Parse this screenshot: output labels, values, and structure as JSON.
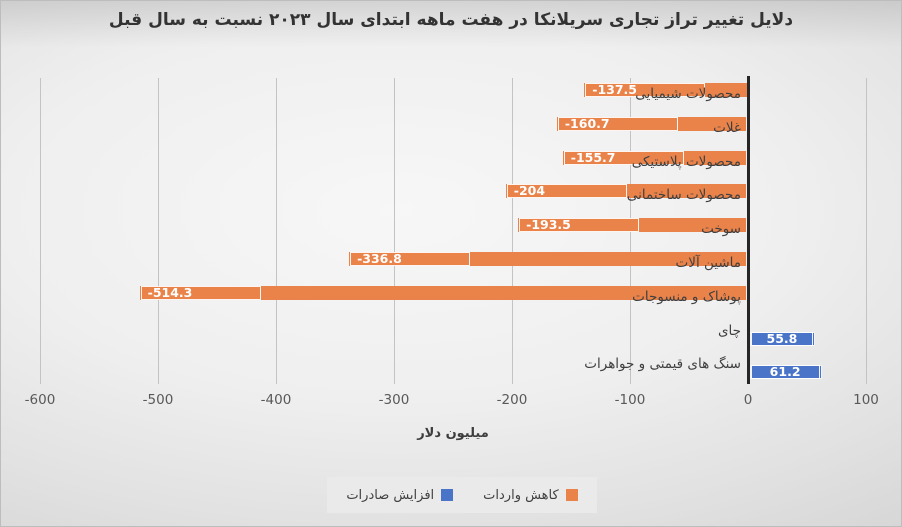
{
  "title": "دلایل تغییر تراز تجاری سریلانکا در هفت ماهه ابتدای سال ۲۰۲۳ نسبت به سال قبل",
  "chart_data": {
    "type": "bar",
    "orientation": "horizontal",
    "title": "دلایل تغییر تراز تجاری سریلانکا در هفت ماهه ابتدای سال ۲۰۲۳ نسبت به سال قبل",
    "xlabel": "میلیون دلار",
    "categories": [
      "محصولات شیمیایی",
      "غلات",
      "محصولات پلاستیکی",
      "محصولات ساختمانی",
      "سوخت",
      "ماشین آلات",
      "پوشاک و منسوجات",
      "چای",
      "سنگ های قیمتی و جواهرات"
    ],
    "series": [
      {
        "name": "کاهش واردات",
        "color": "#EA834A",
        "values": [
          -137.5,
          -160.7,
          -155.7,
          -204,
          -193.5,
          -336.8,
          -514.3,
          null,
          null
        ]
      },
      {
        "name": "افزایش صادرات",
        "color": "#4A74C8",
        "values": [
          null,
          null,
          null,
          null,
          null,
          null,
          null,
          55.8,
          61.2
        ]
      }
    ],
    "value_labels": [
      "-137.5",
      "-160.7",
      "-155.7",
      "-204",
      "-193.5",
      "-336.8",
      "-514.3",
      "55.8",
      "61.2"
    ],
    "xticks": [
      -600,
      -500,
      -400,
      -300,
      -200,
      -100,
      0,
      100
    ],
    "xlim": [
      -600,
      130
    ],
    "grid": "vertical",
    "legend_position": "bottom"
  },
  "colors": {
    "axis_line": "#262626",
    "gridline": "#c3c3c3",
    "tick_text": "#595959",
    "category_text": "#3f3f3f",
    "label_text": "#ffffff"
  }
}
